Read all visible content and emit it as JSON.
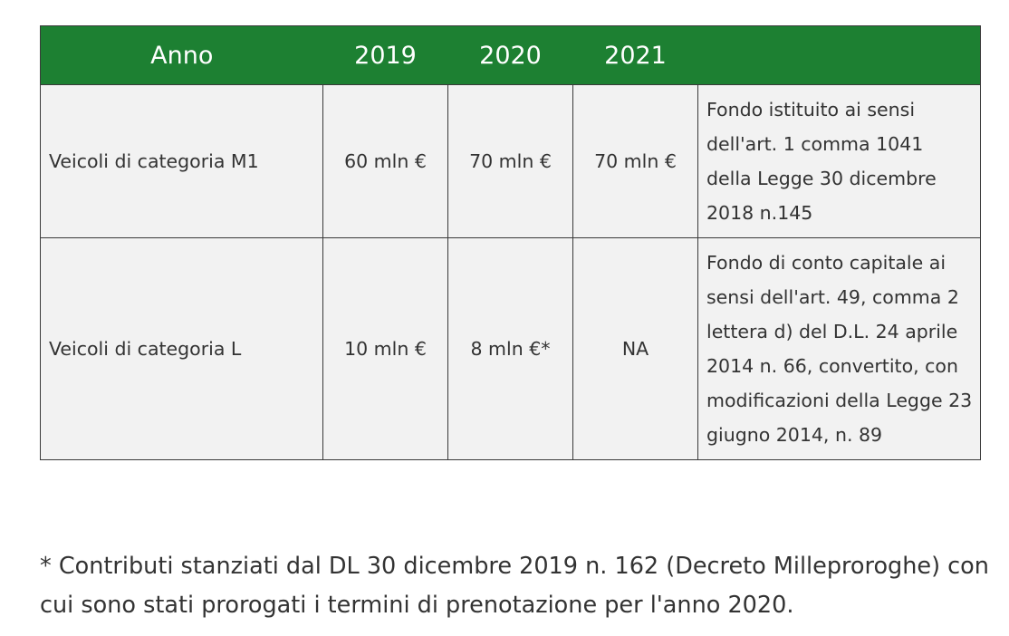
{
  "table": {
    "headers": [
      "Anno",
      "2019",
      "2020",
      "2021",
      ""
    ],
    "rows": [
      {
        "label": "Veicoli di categoria M1",
        "values": [
          "60 mln €",
          "70 mln €",
          "70 mln €"
        ],
        "note": "Fondo istituito ai sensi dell'art. 1 comma 1041 della Legge 30 dicembre 2018 n.145"
      },
      {
        "label": "Veicoli di categoria L",
        "values": [
          "10 mln €",
          "8 mln €*",
          "NA"
        ],
        "note": "Fondo di conto capitale ai sensi dell'art. 49, comma 2 lettera d) del D.L. 24 aprile 2014 n. 66, convertito, con modificazioni della Legge 23 giugno 2014, n. 89"
      }
    ]
  },
  "footnote": "* Contributi stanziati dal DL 30 dicembre 2019 n. 162 (Decreto Milleproroghe) con cui sono stati prorogati i termini di prenotazione per l'anno 2020.",
  "colors": {
    "header_bg": "#1d8032",
    "header_text": "#ffffff",
    "cell_bg": "#f2f2f2",
    "border": "#3a3a3a",
    "text": "#333333"
  }
}
